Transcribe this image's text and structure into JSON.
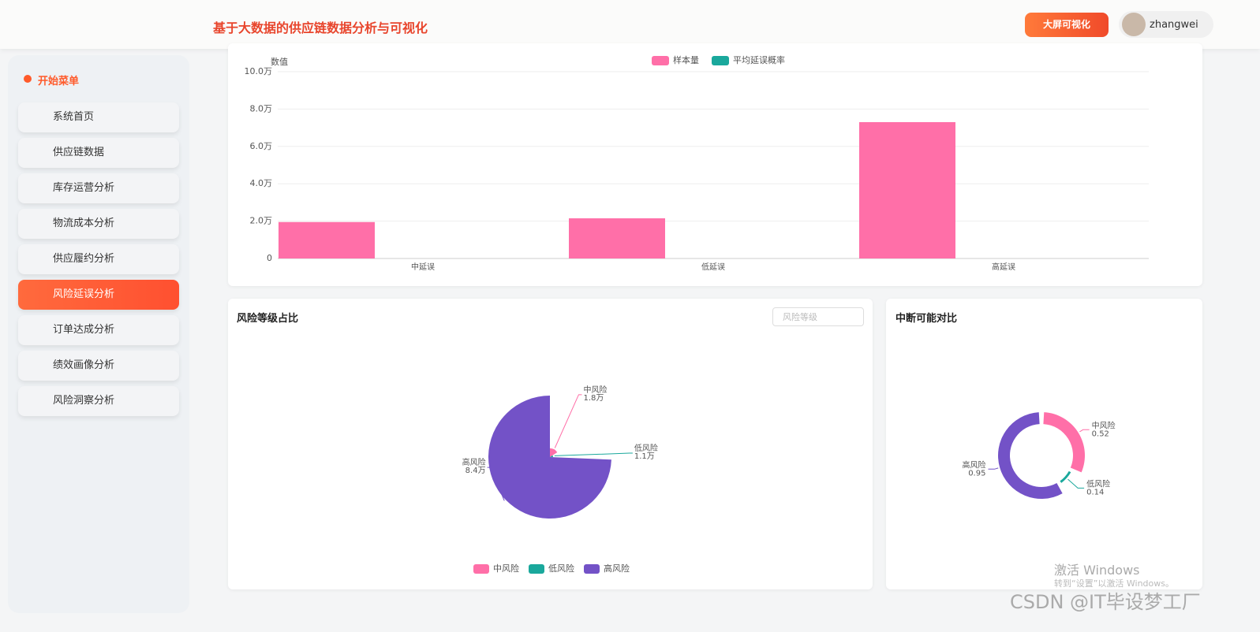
{
  "header": {
    "title": "基于大数据的供应链数据分析与可视化",
    "button": "大屏可视化",
    "user": "zhangwei"
  },
  "menu": {
    "title": "开始菜单",
    "items": [
      "系统首页",
      "供应链数据",
      "库存运营分析",
      "物流成本分析",
      "供应履约分析",
      "风险延误分析",
      "订单达成分析",
      "绩效画像分析",
      "风险洞察分析"
    ],
    "active": 5
  },
  "bar_chart": {
    "type": "bar",
    "y_axis_name": "数值",
    "categories": [
      "中延误",
      "低延误",
      "高延误"
    ],
    "series": [
      {
        "name": "样本量",
        "color": "#ff6fa8",
        "values": [
          19500,
          21500,
          73000
        ]
      },
      {
        "name": "平均延误概率",
        "color": "#1aa89c",
        "values": [
          0,
          0,
          0
        ]
      }
    ],
    "ylim": [
      0,
      100000
    ],
    "yticks": [
      0,
      {
        "value": 20000,
        "label": "2.0万"
      },
      {
        "value": 40000,
        "label": "4.0万"
      },
      {
        "value": 60000,
        "label": "6.0万"
      },
      {
        "value": 80000,
        "label": "8.0万"
      },
      {
        "value": 100000,
        "label": "10.0万"
      }
    ],
    "grid": true
  },
  "pie_chart": {
    "type": "pie",
    "rose": true,
    "title": "风险等级占比",
    "filter_placeholder": "风险等级",
    "categories": [
      "中风险",
      "低风险",
      "高风险"
    ],
    "values": [
      18000,
      11000,
      84000
    ],
    "value_labels": [
      "1.8万",
      "1.1万",
      "8.4万"
    ],
    "colors": [
      "#ff6fa8",
      "#1aa89c",
      "#7352c7"
    ]
  },
  "donut_chart": {
    "type": "donut",
    "title": "中断可能对比",
    "categories": [
      "中风险",
      "低风险",
      "高风险"
    ],
    "values": [
      0.52,
      0.14,
      0.95
    ],
    "colors": [
      "#ff6fa8",
      "#1aa89c",
      "#7352c7"
    ]
  },
  "watermark": {
    "line1": "激活 Windows",
    "line2": "转到“设置”以激活 Windows。",
    "csdn": "CSDN @IT毕设梦工厂"
  }
}
